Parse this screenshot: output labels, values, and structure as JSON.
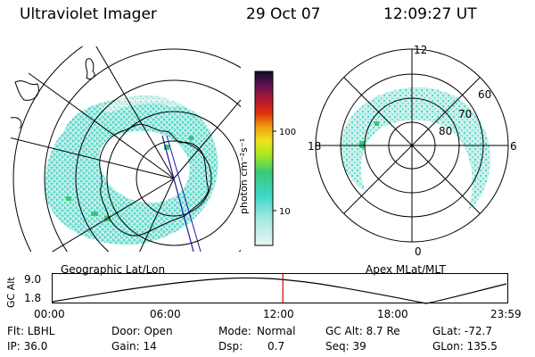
{
  "header": {
    "instrument": "Ultraviolet Imager",
    "date": "29 Oct 07",
    "time": "12:09:27 UT"
  },
  "colorbar": {
    "unit_label": "photon cm⁻²s⁻¹",
    "ticks": [
      "100",
      "10"
    ]
  },
  "geo_panel": {
    "caption": "Geographic Lat/Lon"
  },
  "apex_panel": {
    "caption": "Apex MLat/MLT",
    "mlt_labels": {
      "top": "12",
      "left": "18",
      "right": "6",
      "bottom": "0"
    },
    "lat_labels": [
      "60",
      "70",
      "80"
    ]
  },
  "altitude_plot": {
    "ylabel": "GC Alt",
    "yticks": [
      "9.0",
      "1.8"
    ],
    "xticks": [
      "00:00",
      "06:00",
      "12:00",
      "18:00",
      "23:59"
    ],
    "current_time_fraction": 0.5063
  },
  "footer": {
    "row1": {
      "filter": "Flt: LBHL",
      "door": "Door: Open",
      "mode_label": "Mode:",
      "mode_value": "Normal",
      "gc_alt": "GC Alt: 8.7 Re",
      "glat": "GLat: -72.7"
    },
    "row2": {
      "ip": "IP: 36.0",
      "gain": "Gain: 14",
      "dsp_label": "Dsp:",
      "dsp_value": "0.7",
      "seq": "Seq: 39",
      "glon": "GLon: 135.5"
    }
  },
  "colors": {
    "aurora_primary": "#40d8c8",
    "aurora_secondary": "#a8e8e0",
    "aurora_bright": "#38c878",
    "time_marker": "#cc0000",
    "track_line": "#1818a0"
  }
}
